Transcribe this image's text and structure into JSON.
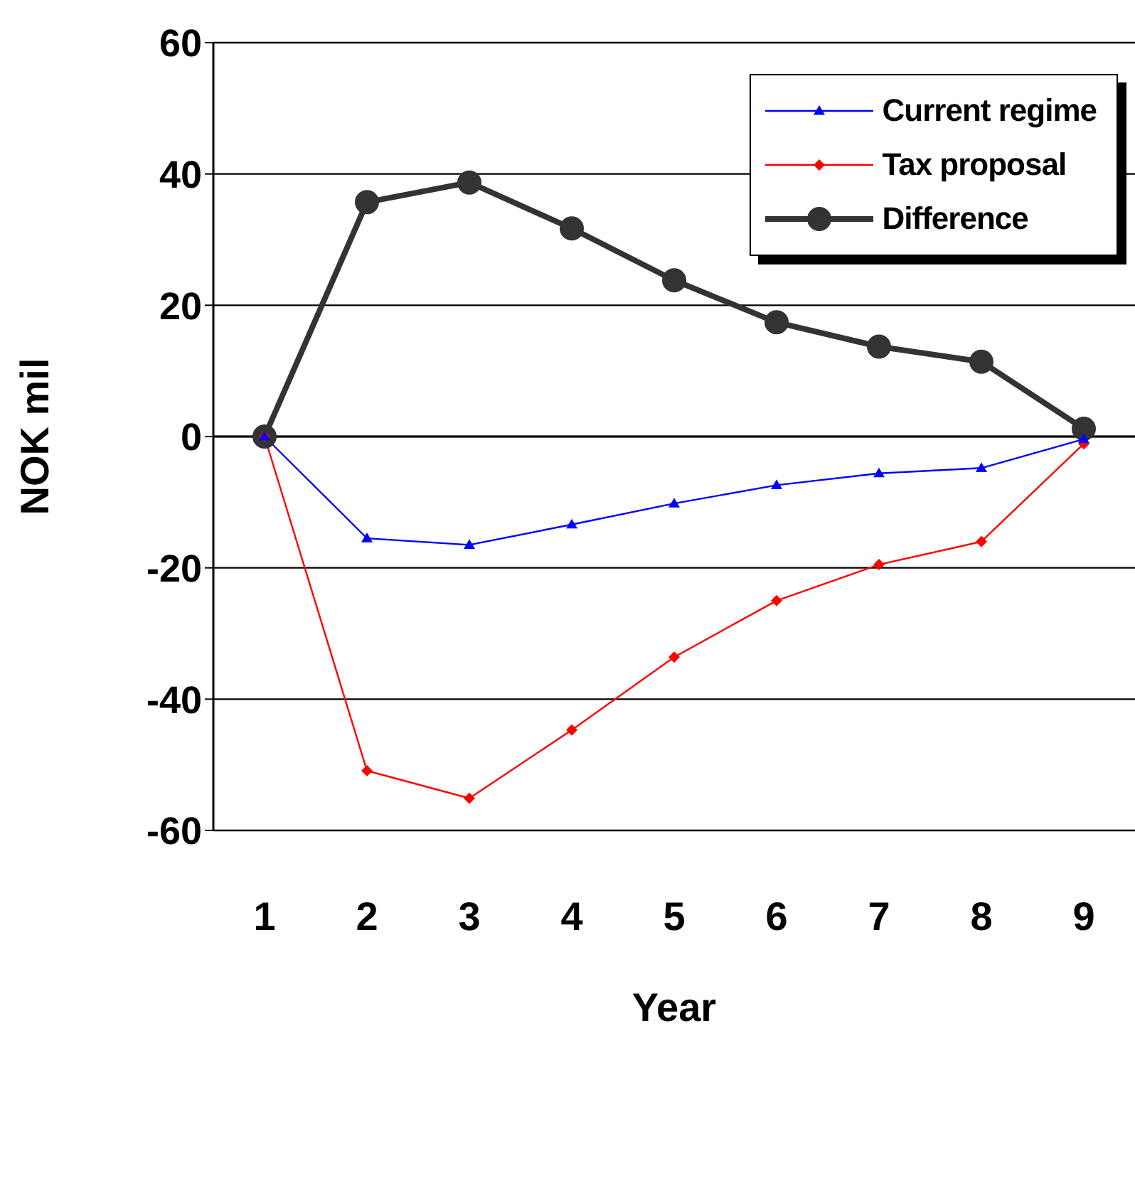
{
  "chart_data": {
    "type": "line",
    "xlabel": "Year",
    "ylabel": "NOK mil",
    "categories": [
      "1",
      "2",
      "3",
      "4",
      "5",
      "6",
      "7",
      "8",
      "9"
    ],
    "ylim": [
      -60,
      60
    ],
    "yticks": [
      -60,
      -40,
      -20,
      0,
      20,
      40,
      60
    ],
    "grid": "y",
    "legend": "top right",
    "series": [
      {
        "name": "Current regime",
        "color": "#0000ff",
        "marker": "triangle",
        "values": [
          0,
          -15.5,
          -16.5,
          -13.4,
          -10.2,
          -7.4,
          -5.6,
          -4.8,
          -0.4
        ]
      },
      {
        "name": "Tax proposal",
        "color": "#ff0000",
        "marker": "diamond",
        "values": [
          0,
          -50.9,
          -55.1,
          -44.7,
          -33.6,
          -25.0,
          -19.5,
          -16.0,
          -1.1
        ]
      },
      {
        "name": "Difference",
        "color": "#333333",
        "marker": "circle",
        "values": [
          0,
          35.7,
          38.7,
          31.7,
          23.8,
          17.4,
          13.7,
          11.4,
          1.2
        ]
      }
    ]
  }
}
